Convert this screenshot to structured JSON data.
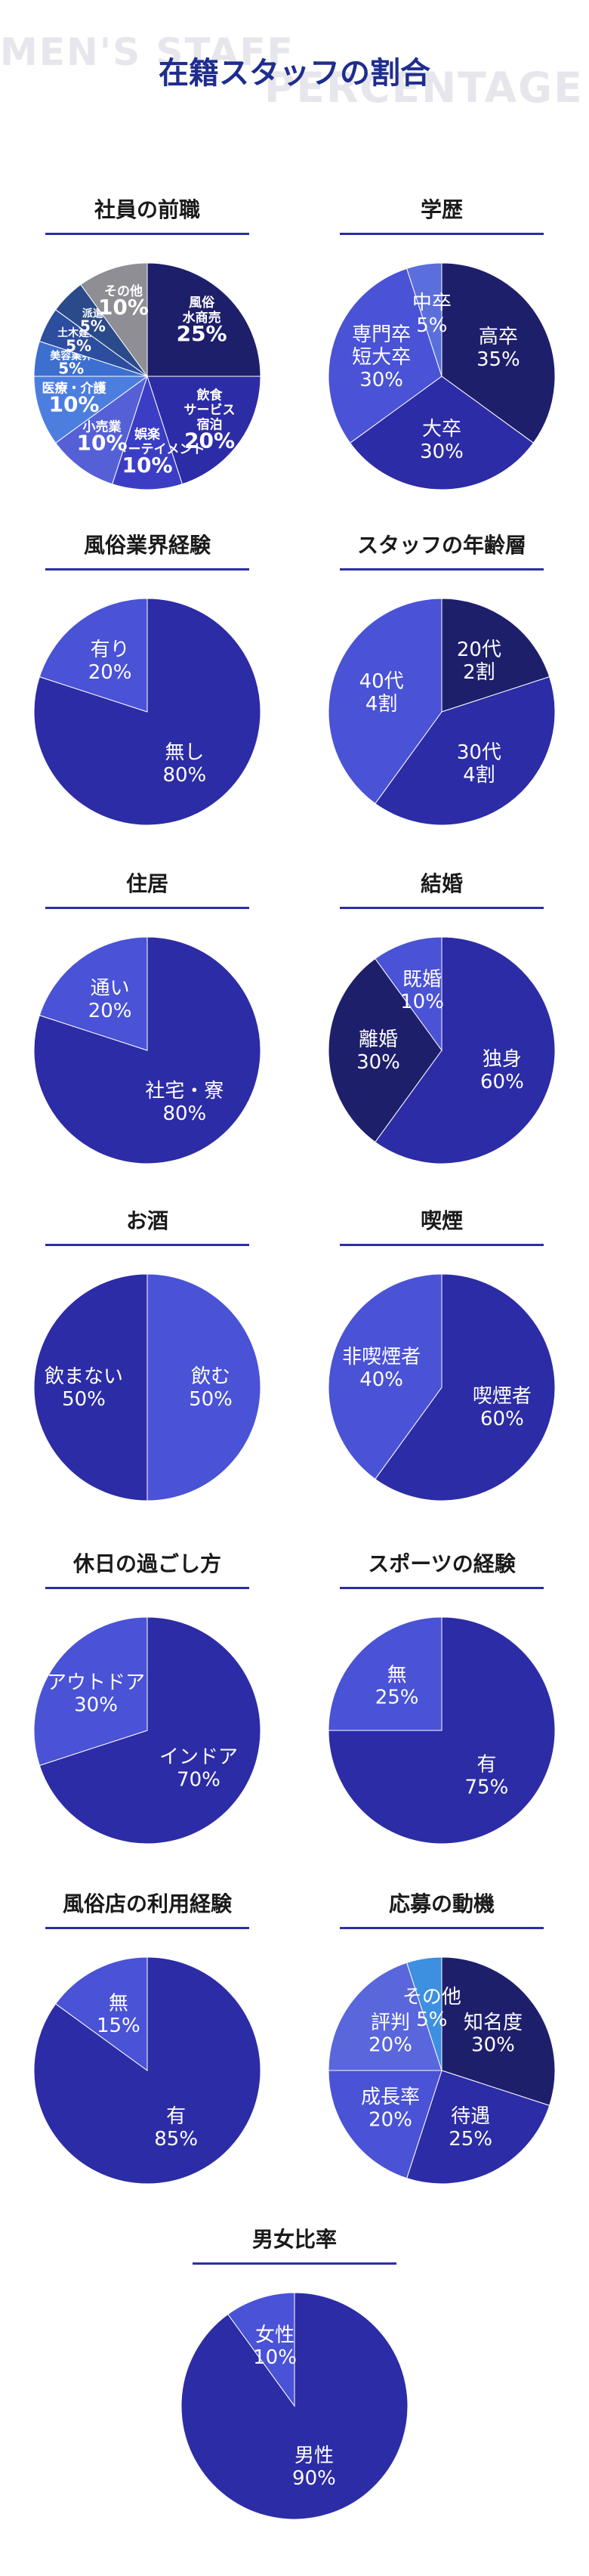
{
  "watermark": {
    "line1": "MEN'S STAFF",
    "line2": "PERCENTAGE"
  },
  "page_title": "在籍スタッフの割合",
  "chart_data": [
    {
      "type": "pie",
      "title": "社員の前職",
      "slices": [
        {
          "label": [
            "風俗",
            "水商売"
          ],
          "value": 25,
          "display": "25%",
          "color": "#1e1f6b"
        },
        {
          "label": [
            "飲食",
            "サービス",
            "宿泊"
          ],
          "value": 20,
          "display": "20%",
          "color": "#2c2ca6"
        },
        {
          "label": [
            "娯楽",
            "エンターテイメント"
          ],
          "value": 10,
          "display": "10%",
          "color": "#3b3ec4"
        },
        {
          "label": [
            "小売業"
          ],
          "value": 10,
          "display": "10%",
          "color": "#5560d6"
        },
        {
          "label": [
            "医療・介護"
          ],
          "value": 10,
          "display": "10%",
          "color": "#4c7ee0"
        },
        {
          "label": [
            "美容業界"
          ],
          "value": 5,
          "display": "5%",
          "color": "#3d6fd0"
        },
        {
          "label": [
            "土木建築"
          ],
          "value": 5,
          "display": "5%",
          "color": "#2d4d9e"
        },
        {
          "label": [
            "派遣"
          ],
          "value": 5,
          "display": "5%",
          "color": "#2a4a8a"
        },
        {
          "label": [
            "その他"
          ],
          "value": 10,
          "display": "10%",
          "color": "#8e8e94"
        }
      ]
    },
    {
      "type": "pie",
      "title": "学歴",
      "slices": [
        {
          "label": [
            "高卒"
          ],
          "value": 35,
          "display": "35%",
          "color": "#1e1f6b"
        },
        {
          "label": [
            "大卒"
          ],
          "value": 30,
          "display": "30%",
          "color": "#2c2ca6"
        },
        {
          "label": [
            "専門卒",
            "短大卒"
          ],
          "value": 30,
          "display": "30%",
          "color": "#4a52d6"
        },
        {
          "label": [
            "中卒"
          ],
          "value": 5,
          "display": "5%",
          "color": "#5b6fdc"
        }
      ]
    },
    {
      "type": "pie",
      "title": "風俗業界経験",
      "slices": [
        {
          "label": [
            "無し"
          ],
          "value": 80,
          "display": "80%",
          "color": "#2c2ca6"
        },
        {
          "label": [
            "有り"
          ],
          "value": 20,
          "display": "20%",
          "color": "#4a52d6"
        }
      ]
    },
    {
      "type": "pie",
      "title": "スタッフの年齢層",
      "slices": [
        {
          "label": [
            "20代"
          ],
          "value": 20,
          "display": "2割",
          "color": "#1e1f6b"
        },
        {
          "label": [
            "30代"
          ],
          "value": 40,
          "display": "4割",
          "color": "#2c2ca6"
        },
        {
          "label": [
            "40代"
          ],
          "value": 40,
          "display": "4割",
          "color": "#4a52d6"
        }
      ]
    },
    {
      "type": "pie",
      "title": "住居",
      "slices": [
        {
          "label": [
            "社宅・寮"
          ],
          "value": 80,
          "display": "80%",
          "color": "#2c2ca6"
        },
        {
          "label": [
            "通い"
          ],
          "value": 20,
          "display": "20%",
          "color": "#4a52d6"
        }
      ]
    },
    {
      "type": "pie",
      "title": "結婚",
      "slices": [
        {
          "label": [
            "独身"
          ],
          "value": 60,
          "display": "60%",
          "color": "#2c2ca6"
        },
        {
          "label": [
            "離婚"
          ],
          "value": 30,
          "display": "30%",
          "color": "#1e1f6b"
        },
        {
          "label": [
            "既婚"
          ],
          "value": 10,
          "display": "10%",
          "color": "#4a52d6"
        }
      ]
    },
    {
      "type": "pie",
      "title": "お酒",
      "slices": [
        {
          "label": [
            "飲む"
          ],
          "value": 50,
          "display": "50%",
          "color": "#4a52d6"
        },
        {
          "label": [
            "飲まない"
          ],
          "value": 50,
          "display": "50%",
          "color": "#2c2ca6"
        }
      ]
    },
    {
      "type": "pie",
      "title": "喫煙",
      "slices": [
        {
          "label": [
            "喫煙者"
          ],
          "value": 60,
          "display": "60%",
          "color": "#2c2ca6"
        },
        {
          "label": [
            "非喫煙者"
          ],
          "value": 40,
          "display": "40%",
          "color": "#4a52d6"
        }
      ]
    },
    {
      "type": "pie",
      "title": "休日の過ごし方",
      "slices": [
        {
          "label": [
            "インドア"
          ],
          "value": 70,
          "display": "70%",
          "color": "#2c2ca6"
        },
        {
          "label": [
            "アウトドア"
          ],
          "value": 30,
          "display": "30%",
          "color": "#4a52d6"
        }
      ]
    },
    {
      "type": "pie",
      "title": "スポーツの経験",
      "slices": [
        {
          "label": [
            "有"
          ],
          "value": 75,
          "display": "75%",
          "color": "#2c2ca6"
        },
        {
          "label": [
            "無"
          ],
          "value": 25,
          "display": "25%",
          "color": "#4a52d6"
        }
      ]
    },
    {
      "type": "pie",
      "title": "風俗店の利用経験",
      "slices": [
        {
          "label": [
            "有"
          ],
          "value": 85,
          "display": "85%",
          "color": "#2c2ca6"
        },
        {
          "label": [
            "無"
          ],
          "value": 15,
          "display": "15%",
          "color": "#4a52d6"
        }
      ]
    },
    {
      "type": "pie",
      "title": "応募の動機",
      "slices": [
        {
          "label": [
            "知名度"
          ],
          "value": 30,
          "display": "30%",
          "color": "#1e1f6b"
        },
        {
          "label": [
            "待遇"
          ],
          "value": 25,
          "display": "25%",
          "color": "#2c2ca6"
        },
        {
          "label": [
            "成長率"
          ],
          "value": 20,
          "display": "20%",
          "color": "#4a52d6"
        },
        {
          "label": [
            "評判"
          ],
          "value": 20,
          "display": "20%",
          "color": "#5a66dc"
        },
        {
          "label": [
            "その他"
          ],
          "value": 5,
          "display": "5%",
          "color": "#3d8fe0"
        }
      ]
    },
    {
      "type": "pie",
      "title": "男女比率",
      "slices": [
        {
          "label": [
            "男性"
          ],
          "value": 90,
          "display": "90%",
          "color": "#2c2ca6"
        },
        {
          "label": [
            "女性"
          ],
          "value": 10,
          "display": "10%",
          "color": "#4a52d6"
        }
      ]
    }
  ]
}
